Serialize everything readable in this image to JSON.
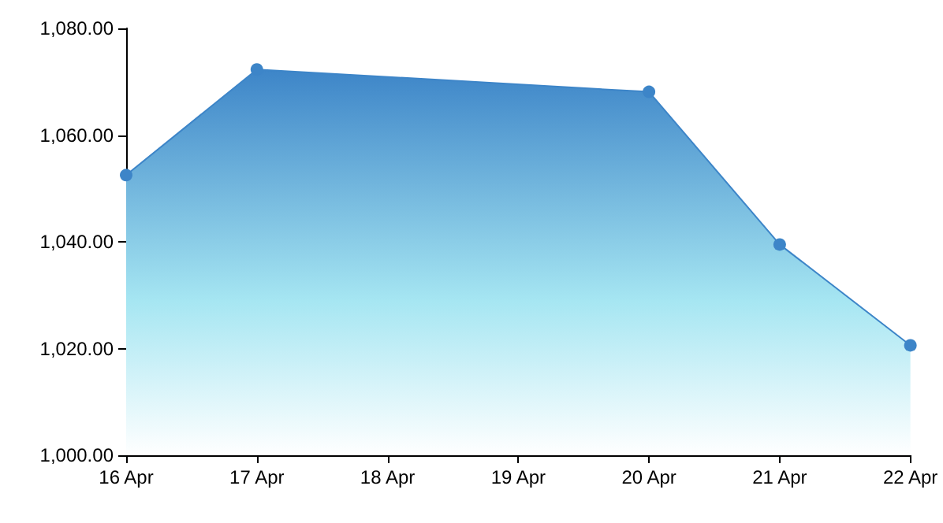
{
  "chart_data": {
    "type": "area",
    "x": [
      "--04-16",
      "--04-17",
      "--04-20",
      "--04-21",
      "--04-22"
    ],
    "series": [
      {
        "color": "#3d85c8",
        "values": [
          1052.5,
          1072.3,
          1068.1,
          1039.5,
          1020.6
        ]
      }
    ],
    "xlim": [
      "--04-16",
      "--04-22"
    ],
    "xticks": [
      {
        "value": "--04-16",
        "label": "16 Apr"
      },
      {
        "value": "--04-17",
        "label": "17 Apr"
      },
      {
        "value": "--04-18",
        "label": "18 Apr"
      },
      {
        "value": "--04-19",
        "label": "19 Apr"
      },
      {
        "value": "--04-20",
        "label": "20 Apr"
      },
      {
        "value": "--04-21",
        "label": "21 Apr"
      },
      {
        "value": "--04-22",
        "label": "22 Apr"
      }
    ],
    "ylim": [
      1000,
      1080
    ],
    "yticks": [
      {
        "value": 1000,
        "label": "1,000.00"
      },
      {
        "value": 1020,
        "label": "1,020.00"
      },
      {
        "value": 1040,
        "label": "1,040.00"
      },
      {
        "value": 1060,
        "label": "1,060.00"
      },
      {
        "value": 1080,
        "label": "1,080.00"
      }
    ],
    "grid": false,
    "marker": "circle",
    "line_style": "solid"
  }
}
